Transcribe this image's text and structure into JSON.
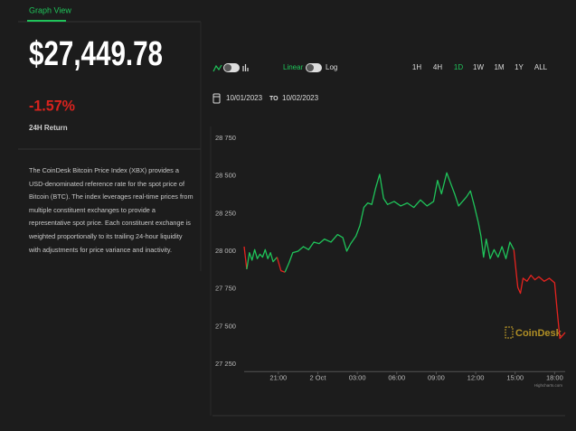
{
  "tab": {
    "label": "Graph View"
  },
  "summary": {
    "price": "$27,449.78",
    "change": "-1.57%",
    "change_label": "24H Return",
    "description": "The CoinDesk Bitcoin Price Index (XBX) provides a USD-denominated reference rate for the spot price of Bitcoin (BTC). The index leverages real-time prices from multiple constituent exchanges to provide a representative spot price. Each constituent exchange is weighted proportionally to its trailing 24-hour liquidity with adjustments for price variance and inactivity."
  },
  "controls": {
    "scale_options": [
      "Linear",
      "Log"
    ],
    "timeframes": [
      {
        "label": "1H",
        "active": false
      },
      {
        "label": "4H",
        "active": false
      },
      {
        "label": "1D",
        "active": true
      },
      {
        "label": "1W",
        "active": false
      },
      {
        "label": "1M",
        "active": false
      },
      {
        "label": "1Y",
        "active": false
      },
      {
        "label": "ALL",
        "active": false
      }
    ],
    "date_from": "10/01/2023",
    "date_separator": "TO",
    "date_to": "10/02/2023"
  },
  "chart_data": {
    "type": "line",
    "watermark": "CoinDesk",
    "credit": "Highcharts.com",
    "x": [
      18.4,
      18.6,
      18.8,
      19.0,
      19.2,
      19.4,
      19.6,
      19.8,
      20.0,
      20.2,
      20.4,
      20.6,
      20.9,
      21.2,
      21.5,
      21.8,
      22.1,
      22.5,
      22.9,
      23.3,
      23.7,
      24.1,
      24.5,
      25.0,
      25.5,
      25.9,
      26.2,
      26.5,
      26.9,
      27.2,
      27.5,
      27.8,
      28.1,
      28.4,
      28.7,
      29.0,
      29.3,
      29.8,
      30.3,
      30.8,
      31.3,
      31.8,
      32.3,
      32.8,
      33.1,
      33.4,
      33.8,
      34.1,
      34.4,
      34.7,
      35.0,
      35.3,
      35.6,
      35.9,
      36.2,
      36.4,
      36.6,
      36.8,
      37.1,
      37.4,
      37.7,
      38.0,
      38.3,
      38.6,
      38.9,
      39.2,
      39.4,
      39.6,
      39.9,
      40.2,
      40.5,
      40.8,
      41.2,
      41.6,
      42.0,
      42.2,
      42.4,
      42.6,
      42.8
    ],
    "values": [
      28030,
      27880,
      27990,
      27940,
      28010,
      27950,
      27980,
      27960,
      28010,
      27950,
      27990,
      27930,
      27960,
      27870,
      27860,
      27920,
      27990,
      28000,
      28030,
      28010,
      28060,
      28050,
      28080,
      28060,
      28110,
      28090,
      28000,
      28050,
      28100,
      28170,
      28290,
      28320,
      28310,
      28420,
      28510,
      28350,
      28310,
      28330,
      28300,
      28320,
      28290,
      28340,
      28300,
      28330,
      28470,
      28380,
      28520,
      28450,
      28380,
      28300,
      28330,
      28360,
      28400,
      28300,
      28190,
      28100,
      27960,
      28080,
      27950,
      28010,
      27960,
      28030,
      27950,
      28060,
      28010,
      27760,
      27720,
      27820,
      27800,
      27840,
      27810,
      27830,
      27800,
      27820,
      27790,
      27600,
      27420,
      27440,
      27460
    ],
    "colors": [
      "#1fc45a",
      "#e5231f",
      "#1fc45a",
      "#1fc45a",
      "#1fc45a",
      "#1fc45a",
      "#1fc45a",
      "#1fc45a",
      "#1fc45a",
      "#1fc45a",
      "#1fc45a",
      "#1fc45a",
      "#1fc45a",
      "#e5231f",
      "#e5231f",
      "#1fc45a",
      "#1fc45a",
      "#1fc45a",
      "#1fc45a",
      "#1fc45a",
      "#1fc45a",
      "#1fc45a",
      "#1fc45a",
      "#1fc45a",
      "#1fc45a",
      "#1fc45a",
      "#1fc45a",
      "#1fc45a",
      "#1fc45a",
      "#1fc45a",
      "#1fc45a",
      "#1fc45a",
      "#1fc45a",
      "#1fc45a",
      "#1fc45a",
      "#1fc45a",
      "#1fc45a",
      "#1fc45a",
      "#1fc45a",
      "#1fc45a",
      "#1fc45a",
      "#1fc45a",
      "#1fc45a",
      "#1fc45a",
      "#1fc45a",
      "#1fc45a",
      "#1fc45a",
      "#1fc45a",
      "#1fc45a",
      "#1fc45a",
      "#1fc45a",
      "#1fc45a",
      "#1fc45a",
      "#1fc45a",
      "#1fc45a",
      "#1fc45a",
      "#1fc45a",
      "#1fc45a",
      "#1fc45a",
      "#1fc45a",
      "#1fc45a",
      "#1fc45a",
      "#1fc45a",
      "#1fc45a",
      "#1fc45a",
      "#e5231f",
      "#e5231f",
      "#e5231f",
      "#e5231f",
      "#e5231f",
      "#e5231f",
      "#e5231f",
      "#e5231f",
      "#e5231f",
      "#e5231f",
      "#e5231f",
      "#e5231f",
      "#e5231f",
      "#e5231f"
    ],
    "xlim": [
      18.4,
      42.8
    ],
    "xticks": [
      {
        "value": 21,
        "label": "21:00"
      },
      {
        "value": 24,
        "label": "2 Oct"
      },
      {
        "value": 27,
        "label": "03:00"
      },
      {
        "value": 30,
        "label": "06:00"
      },
      {
        "value": 33,
        "label": "09:00"
      },
      {
        "value": 36,
        "label": "12:00"
      },
      {
        "value": 39,
        "label": "15:00"
      },
      {
        "value": 42,
        "label": "18:00"
      }
    ],
    "ylim": [
      27200,
      28800
    ],
    "yticks": [
      {
        "value": 27250,
        "label": "27 250"
      },
      {
        "value": 27500,
        "label": "27 500"
      },
      {
        "value": 27750,
        "label": "27 750"
      },
      {
        "value": 28000,
        "label": "28 000"
      },
      {
        "value": 28250,
        "label": "28 250"
      },
      {
        "value": 28500,
        "label": "28 500"
      },
      {
        "value": 28750,
        "label": "28 750"
      }
    ],
    "grid": false
  }
}
